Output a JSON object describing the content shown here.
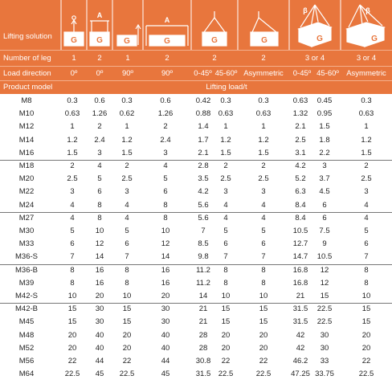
{
  "header": {
    "lifting_solution_label": "Lifting solution",
    "number_of_leg_label": "Number of leg",
    "load_direction_label": "Load direction",
    "product_model_label": "Product model",
    "lifting_load_label": "Lifting load/t",
    "legs": [
      "1",
      "2",
      "1",
      "2",
      "2",
      "2",
      "3 or 4",
      "3 or 4"
    ],
    "directions": [
      "0º",
      "0º",
      "90º",
      "90º",
      "0-45º",
      "45-60º",
      "Asymmetric",
      "0-45º",
      "45-60º",
      "Asymmetric"
    ],
    "icon_letters": [
      "G",
      "G",
      "G",
      "G",
      "G",
      "G",
      "G",
      "G"
    ],
    "icon_marks": [
      "A",
      "A",
      "β",
      "β"
    ],
    "icon_names": [
      "single-leg-vertical-icon",
      "two-leg-vertical-icon",
      "single-leg-side-icon",
      "two-leg-side-icon",
      "two-leg-angled-icon",
      "two-leg-asymmetric-icon",
      "multi-leg-angled-icon",
      "multi-leg-asymmetric-icon"
    ]
  },
  "colors": {
    "band": "#e8763d",
    "text": "#1f1f1f"
  },
  "rows": [
    {
      "model": "M8",
      "vals": [
        "0.3",
        "0.6",
        "0.3",
        "0.6",
        "0.42",
        "0.3",
        "0.3",
        "0.63",
        "0.45",
        "0.3"
      ]
    },
    {
      "model": "M10",
      "vals": [
        "0.63",
        "1.26",
        "0.62",
        "1.26",
        "0.88",
        "0.63",
        "0.63",
        "1.32",
        "0.95",
        "0.63"
      ]
    },
    {
      "model": "M12",
      "vals": [
        "1",
        "2",
        "1",
        "2",
        "1.4",
        "1",
        "1",
        "2.1",
        "1.5",
        "1"
      ]
    },
    {
      "model": "M14",
      "vals": [
        "1.2",
        "2.4",
        "1.2",
        "2.4",
        "1.7",
        "1.2",
        "1.2",
        "2.5",
        "1.8",
        "1.2"
      ]
    },
    {
      "model": "M16",
      "vals": [
        "1.5",
        "3",
        "1.5",
        "3",
        "2.1",
        "1.5",
        "1.5",
        "3.1",
        "2.2",
        "1.5"
      ]
    },
    {
      "model": "M18",
      "vals": [
        "2",
        "4",
        "2",
        "4",
        "2.8",
        "2",
        "2",
        "4.2",
        "3",
        "2"
      ]
    },
    {
      "model": "M20",
      "vals": [
        "2.5",
        "5",
        "2.5",
        "5",
        "3.5",
        "2.5",
        "2.5",
        "5.2",
        "3.7",
        "2.5"
      ]
    },
    {
      "model": "M22",
      "vals": [
        "3",
        "6",
        "3",
        "6",
        "4.2",
        "3",
        "3",
        "6.3",
        "4.5",
        "3"
      ]
    },
    {
      "model": "M24",
      "vals": [
        "4",
        "8",
        "4",
        "8",
        "5.6",
        "4",
        "4",
        "8.4",
        "6",
        "4"
      ]
    },
    {
      "model": "M27",
      "vals": [
        "4",
        "8",
        "4",
        "8",
        "5.6",
        "4",
        "4",
        "8.4",
        "6",
        "4"
      ]
    },
    {
      "model": "M30",
      "vals": [
        "5",
        "10",
        "5",
        "10",
        "7",
        "5",
        "5",
        "10.5",
        "7.5",
        "5"
      ]
    },
    {
      "model": "M33",
      "vals": [
        "6",
        "12",
        "6",
        "12",
        "8.5",
        "6",
        "6",
        "12.7",
        "9",
        "6"
      ]
    },
    {
      "model": "M36-S",
      "vals": [
        "7",
        "14",
        "7",
        "14",
        "9.8",
        "7",
        "7",
        "14.7",
        "10.5",
        "7"
      ]
    },
    {
      "model": "M36-B",
      "vals": [
        "8",
        "16",
        "8",
        "16",
        "11.2",
        "8",
        "8",
        "16.8",
        "12",
        "8"
      ]
    },
    {
      "model": "M39",
      "vals": [
        "8",
        "16",
        "8",
        "16",
        "11.2",
        "8",
        "8",
        "16.8",
        "12",
        "8"
      ]
    },
    {
      "model": "M42-S",
      "vals": [
        "10",
        "20",
        "10",
        "20",
        "14",
        "10",
        "10",
        "21",
        "15",
        "10"
      ]
    },
    {
      "model": "M42-B",
      "vals": [
        "15",
        "30",
        "15",
        "30",
        "21",
        "15",
        "15",
        "31.5",
        "22.5",
        "15"
      ]
    },
    {
      "model": "M45",
      "vals": [
        "15",
        "30",
        "15",
        "30",
        "21",
        "15",
        "15",
        "31.5",
        "22.5",
        "15"
      ]
    },
    {
      "model": "M48",
      "vals": [
        "20",
        "40",
        "20",
        "40",
        "28",
        "20",
        "20",
        "42",
        "30",
        "20"
      ]
    },
    {
      "model": "M52",
      "vals": [
        "20",
        "40",
        "20",
        "40",
        "28",
        "20",
        "20",
        "42",
        "30",
        "20"
      ]
    },
    {
      "model": "M56",
      "vals": [
        "22",
        "44",
        "22",
        "44",
        "30.8",
        "22",
        "22",
        "46.2",
        "33",
        "22"
      ]
    },
    {
      "model": "M64",
      "vals": [
        "22.5",
        "45",
        "22.5",
        "45",
        "31.5",
        "22.5",
        "22.5",
        "47.25",
        "33.75",
        "22.5"
      ]
    }
  ]
}
